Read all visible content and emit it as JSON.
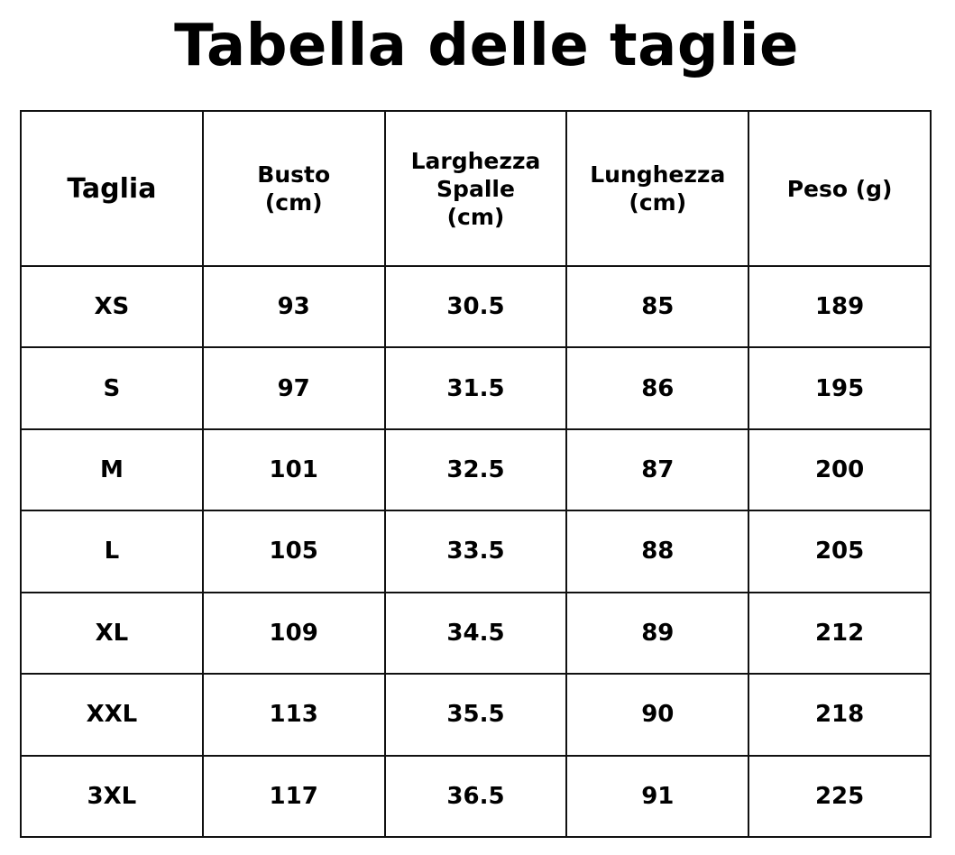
{
  "title": "Tabella delle taglie",
  "headers": [
    [
      "Taglia"
    ],
    [
      "Busto",
      "(cm)"
    ],
    [
      "Larghezza",
      "Spalle",
      "(cm)"
    ],
    [
      "Lunghezza",
      "(cm)"
    ],
    [
      "Peso (g)"
    ]
  ],
  "rows": [
    [
      "XS",
      "93",
      "30.5",
      "85",
      "189"
    ],
    [
      "S",
      "97",
      "31.5",
      "86",
      "195"
    ],
    [
      "M",
      "101",
      "32.5",
      "87",
      "200"
    ],
    [
      "L",
      "105",
      "33.5",
      "88",
      "205"
    ],
    [
      "XL",
      "109",
      "34.5",
      "89",
      "212"
    ],
    [
      "XXL",
      "113",
      "35.5",
      "90",
      "218"
    ],
    [
      "3XL",
      "117",
      "36.5",
      "91",
      "225"
    ]
  ]
}
